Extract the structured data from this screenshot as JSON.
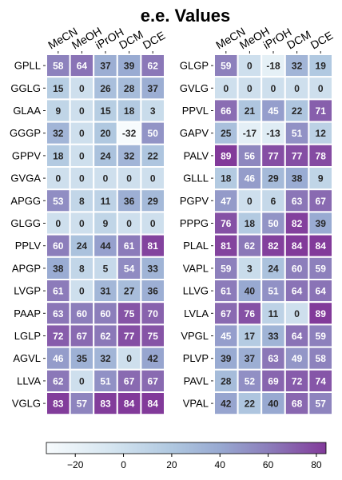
{
  "chart_data": {
    "type": "heatmap",
    "title": "e.e. Values",
    "columns": [
      "MeCN",
      "MeOH",
      "iPrOH",
      "DCM",
      "DCE"
    ],
    "colormap": {
      "name": "purple-blue",
      "vmin": -32,
      "vmax": 84,
      "stops": [
        {
          "value": -32,
          "color": "#f7fbfd"
        },
        {
          "value": -5,
          "color": "#d5e5f0"
        },
        {
          "value": 20,
          "color": "#b0c8e0"
        },
        {
          "value": 40,
          "color": "#98a9d1"
        },
        {
          "value": 60,
          "color": "#8c7ebb"
        },
        {
          "value": 84,
          "color": "#823a9a"
        }
      ]
    },
    "colorbar": {
      "ticks": [
        -20,
        0,
        20,
        40,
        60,
        80
      ],
      "tick_labels": [
        "−20",
        "0",
        "20",
        "40",
        "60",
        "80"
      ],
      "placement": "bottom"
    },
    "panels": [
      {
        "rows": [
          "GPLL",
          "GGLG",
          "GLAA",
          "GGGP",
          "GPPV",
          "GVGA",
          "APGG",
          "GLGG",
          "PPLV",
          "APGP",
          "LVGP",
          "PAAP",
          "LGLP",
          "AGVL",
          "LLVA",
          "VGLG"
        ],
        "values": [
          [
            58,
            64,
            37,
            39,
            62
          ],
          [
            15,
            0,
            26,
            28,
            37
          ],
          [
            9,
            0,
            15,
            18,
            3
          ],
          [
            32,
            0,
            20,
            -32,
            50
          ],
          [
            18,
            0,
            24,
            32,
            22
          ],
          [
            0,
            0,
            0,
            0,
            0
          ],
          [
            53,
            8,
            11,
            36,
            29
          ],
          [
            0,
            0,
            9,
            0,
            0
          ],
          [
            60,
            24,
            44,
            61,
            81
          ],
          [
            38,
            8,
            5,
            54,
            33
          ],
          [
            61,
            0,
            31,
            27,
            36
          ],
          [
            63,
            60,
            60,
            75,
            70
          ],
          [
            72,
            67,
            62,
            77,
            75
          ],
          [
            46,
            35,
            32,
            0,
            42
          ],
          [
            62,
            0,
            51,
            67,
            67
          ],
          [
            83,
            57,
            83,
            84,
            84
          ]
        ]
      },
      {
        "rows": [
          "GLGP",
          "GVLG",
          "PPVL",
          "GAPV",
          "PALV",
          "GLLL",
          "PGPV",
          "PPPG",
          "PLAL",
          "VAPL",
          "LLVG",
          "LVLA",
          "VPGL",
          "PLVP",
          "PAVL",
          "VPAL"
        ],
        "values": [
          [
            59,
            0,
            -18,
            32,
            19
          ],
          [
            0,
            0,
            0,
            0,
            0
          ],
          [
            66,
            21,
            45,
            22,
            71
          ],
          [
            25,
            -17,
            -13,
            51,
            12
          ],
          [
            89,
            56,
            77,
            77,
            78
          ],
          [
            18,
            46,
            29,
            38,
            9
          ],
          [
            47,
            0,
            6,
            63,
            67
          ],
          [
            76,
            18,
            50,
            82,
            39
          ],
          [
            81,
            62,
            82,
            84,
            84
          ],
          [
            59,
            3,
            24,
            60,
            59
          ],
          [
            61,
            40,
            51,
            64,
            64
          ],
          [
            67,
            76,
            11,
            0,
            89
          ],
          [
            45,
            17,
            33,
            64,
            59
          ],
          [
            39,
            37,
            63,
            49,
            58
          ],
          [
            28,
            52,
            69,
            72,
            74
          ],
          [
            42,
            22,
            40,
            68,
            57
          ]
        ]
      }
    ]
  }
}
